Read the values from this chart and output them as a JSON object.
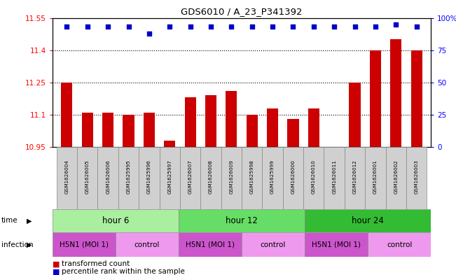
{
  "title": "GDS6010 / A_23_P341392",
  "samples": [
    "GSM1626004",
    "GSM1626005",
    "GSM1626006",
    "GSM1625995",
    "GSM1625996",
    "GSM1625997",
    "GSM1626007",
    "GSM1626008",
    "GSM1626009",
    "GSM1625998",
    "GSM1625999",
    "GSM1626000",
    "GSM1626010",
    "GSM1626011",
    "GSM1626012",
    "GSM1626001",
    "GSM1626002",
    "GSM1626003"
  ],
  "red_values": [
    11.25,
    11.11,
    11.11,
    11.1,
    11.11,
    10.98,
    11.18,
    11.19,
    11.21,
    11.1,
    11.13,
    11.08,
    11.13,
    10.95,
    11.25,
    11.4,
    11.45,
    11.4
  ],
  "blue_values": [
    93,
    93,
    93,
    93,
    88,
    93,
    93,
    93,
    93,
    93,
    93,
    93,
    93,
    93,
    93,
    93,
    95,
    93
  ],
  "ymin": 10.95,
  "ymax": 11.55,
  "yticks": [
    10.95,
    11.1,
    11.25,
    11.4,
    11.55
  ],
  "ytick_labels": [
    "10.95",
    "11.1",
    "11.25",
    "11.4",
    "11.55"
  ],
  "y2min": 0,
  "y2max": 100,
  "y2ticks": [
    0,
    25,
    50,
    75,
    100
  ],
  "y2tick_labels": [
    "0",
    "25",
    "50",
    "75",
    "100%"
  ],
  "grid_values": [
    11.1,
    11.25,
    11.4
  ],
  "time_groups": [
    {
      "label": "hour 6",
      "start": 0,
      "end": 6,
      "color": "#AAEEA0"
    },
    {
      "label": "hour 12",
      "start": 6,
      "end": 12,
      "color": "#66DD66"
    },
    {
      "label": "hour 24",
      "start": 12,
      "end": 18,
      "color": "#33BB33"
    }
  ],
  "infection_groups": [
    {
      "label": "H5N1 (MOI 1)",
      "start": 0,
      "end": 3,
      "color": "#CC55CC"
    },
    {
      "label": "control",
      "start": 3,
      "end": 6,
      "color": "#EE99EE"
    },
    {
      "label": "H5N1 (MOI 1)",
      "start": 6,
      "end": 9,
      "color": "#CC55CC"
    },
    {
      "label": "control",
      "start": 9,
      "end": 12,
      "color": "#EE99EE"
    },
    {
      "label": "H5N1 (MOI 1)",
      "start": 12,
      "end": 15,
      "color": "#CC55CC"
    },
    {
      "label": "control",
      "start": 15,
      "end": 18,
      "color": "#EE99EE"
    }
  ],
  "bar_color": "#CC0000",
  "blue_color": "#0000CC",
  "bar_width": 0.55,
  "legend_red_label": "transformed count",
  "legend_blue_label": "percentile rank within the sample",
  "time_label": "time",
  "infection_label": "infection"
}
